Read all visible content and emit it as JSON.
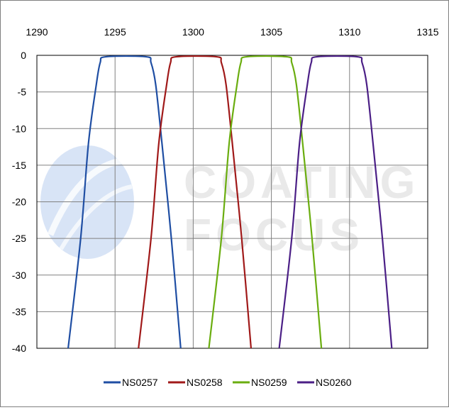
{
  "watermark": {
    "line1": "COATING",
    "line2": "FOCUS"
  },
  "chart_data": {
    "type": "line",
    "title": "",
    "xlabel": "",
    "ylabel": "",
    "xlim": [
      1290,
      1315
    ],
    "ylim": [
      -40,
      0
    ],
    "x_ticks": [
      "1290",
      "1295",
      "1300",
      "1305",
      "1310",
      "1315"
    ],
    "y_ticks": [
      "0",
      "-5",
      "-10",
      "-15",
      "-20",
      "-25",
      "-30",
      "-35",
      "-40"
    ],
    "x_axis_position": "top",
    "grid": true,
    "legend_position": "bottom",
    "series": [
      {
        "name": "NS0257",
        "color": "#1f4ea3",
        "x": [
          1292.0,
          1292.8,
          1293.3,
          1293.8,
          1294.05,
          1294.4,
          1297.0,
          1297.3,
          1297.6,
          1298.0,
          1298.6,
          1299.2
        ],
        "y": [
          -40,
          -25,
          -12,
          -4,
          -1,
          -0.2,
          -0.2,
          -1,
          -4,
          -12,
          -25,
          -40
        ]
      },
      {
        "name": "NS0258",
        "color": "#a01919",
        "x": [
          1296.5,
          1297.3,
          1297.8,
          1298.3,
          1298.55,
          1298.9,
          1301.5,
          1301.8,
          1302.1,
          1302.5,
          1303.1,
          1303.7
        ],
        "y": [
          -40,
          -25,
          -12,
          -4,
          -1,
          -0.2,
          -0.2,
          -1,
          -4,
          -12,
          -25,
          -40
        ]
      },
      {
        "name": "NS0259",
        "color": "#6aad0f",
        "x": [
          1301.0,
          1301.8,
          1302.3,
          1302.8,
          1303.05,
          1303.4,
          1306.0,
          1306.3,
          1306.6,
          1307.0,
          1307.6,
          1308.2
        ],
        "y": [
          -40,
          -25,
          -12,
          -4,
          -1,
          -0.2,
          -0.2,
          -1,
          -4,
          -12,
          -25,
          -40
        ]
      },
      {
        "name": "NS0260",
        "color": "#4b1f86",
        "x": [
          1305.5,
          1306.3,
          1306.8,
          1307.3,
          1307.55,
          1307.9,
          1310.5,
          1310.8,
          1311.1,
          1311.5,
          1312.1,
          1312.7
        ],
        "y": [
          -40,
          -25,
          -12,
          -4,
          -1,
          -0.2,
          -0.2,
          -1,
          -4,
          -12,
          -25,
          -40
        ]
      }
    ]
  }
}
